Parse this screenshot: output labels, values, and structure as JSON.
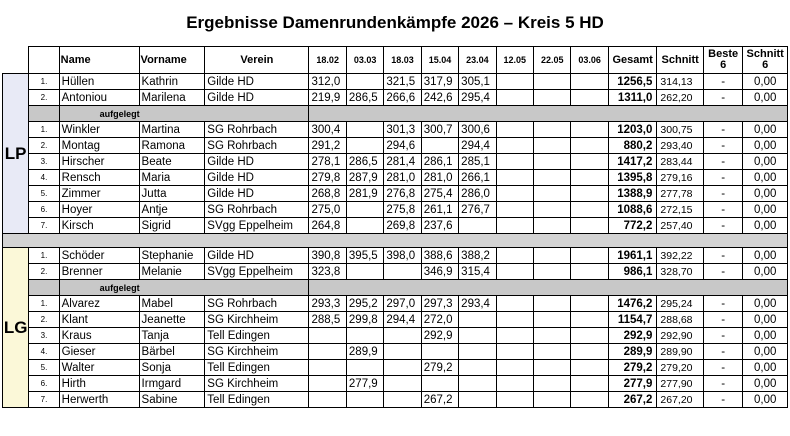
{
  "title": "Ergebnisse Damenrundenkämpfe 2026 – Kreis 5 HD",
  "headers": {
    "name": "Name",
    "vorname": "Vorname",
    "verein": "Verein",
    "dates": [
      "18.02",
      "03.03",
      "18.03",
      "15.04",
      "23.04",
      "12.05",
      "22.05",
      "03.06"
    ],
    "gesamt": "Gesamt",
    "schnitt": "Schnitt",
    "beste": "Beste 6",
    "schnitt6": "Schnitt 6"
  },
  "aufgelegt_label": "aufgelegt",
  "groups": [
    {
      "label": "LP",
      "rows_top": [
        {
          "pos": "1.",
          "name": "Hüllen",
          "vorname": "Kathrin",
          "verein": "Gilde HD",
          "scores": [
            "312,0",
            "",
            "321,5",
            "317,9",
            "305,1",
            "",
            "",
            ""
          ],
          "gesamt": "1256,5",
          "schnitt": "314,13",
          "beste": "-",
          "schnitt6": "0,00"
        },
        {
          "pos": "2.",
          "name": "Antoniou",
          "vorname": "Marilena",
          "verein": "Gilde HD",
          "scores": [
            "219,9",
            "286,5",
            "266,6",
            "242,6",
            "295,4",
            "",
            "",
            ""
          ],
          "gesamt": "1311,0",
          "schnitt": "262,20",
          "beste": "-",
          "schnitt6": "0,00"
        }
      ],
      "rows_bottom": [
        {
          "pos": "1.",
          "name": "Winkler",
          "vorname": "Martina",
          "verein": "SG Rohrbach",
          "scores": [
            "300,4",
            "",
            "301,3",
            "300,7",
            "300,6",
            "",
            "",
            ""
          ],
          "gesamt": "1203,0",
          "schnitt": "300,75",
          "beste": "-",
          "schnitt6": "0,00"
        },
        {
          "pos": "2.",
          "name": "Montag",
          "vorname": "Ramona",
          "verein": "SG Rohrbach",
          "scores": [
            "291,2",
            "",
            "294,6",
            "",
            "294,4",
            "",
            "",
            ""
          ],
          "gesamt": "880,2",
          "schnitt": "293,40",
          "beste": "-",
          "schnitt6": "0,00"
        },
        {
          "pos": "3.",
          "name": "Hirscher",
          "vorname": "Beate",
          "verein": "Gilde HD",
          "scores": [
            "278,1",
            "286,5",
            "281,4",
            "286,1",
            "285,1",
            "",
            "",
            ""
          ],
          "gesamt": "1417,2",
          "schnitt": "283,44",
          "beste": "-",
          "schnitt6": "0,00"
        },
        {
          "pos": "4.",
          "name": "Rensch",
          "vorname": "Maria",
          "verein": "Gilde HD",
          "scores": [
            "279,8",
            "287,9",
            "281,0",
            "281,0",
            "266,1",
            "",
            "",
            ""
          ],
          "gesamt": "1395,8",
          "schnitt": "279,16",
          "beste": "-",
          "schnitt6": "0,00"
        },
        {
          "pos": "5.",
          "name": "Zimmer",
          "vorname": "Jutta",
          "verein": "Gilde HD",
          "scores": [
            "268,8",
            "281,9",
            "276,8",
            "275,4",
            "286,0",
            "",
            "",
            ""
          ],
          "gesamt": "1388,9",
          "schnitt": "277,78",
          "beste": "-",
          "schnitt6": "0,00"
        },
        {
          "pos": "6.",
          "name": "Hoyer",
          "vorname": "Antje",
          "verein": "SG Rohrbach",
          "scores": [
            "275,0",
            "",
            "275,8",
            "261,1",
            "276,7",
            "",
            "",
            ""
          ],
          "gesamt": "1088,6",
          "schnitt": "272,15",
          "beste": "-",
          "schnitt6": "0,00"
        },
        {
          "pos": "7.",
          "name": "Kirsch",
          "vorname": "Sigrid",
          "verein": "SVgg Eppelheim",
          "scores": [
            "264,8",
            "",
            "269,8",
            "237,6",
            "",
            "",
            "",
            ""
          ],
          "gesamt": "772,2",
          "schnitt": "257,40",
          "beste": "-",
          "schnitt6": "0,00"
        }
      ]
    },
    {
      "label": "LG",
      "rows_top": [
        {
          "pos": "1.",
          "name": "Schöder",
          "vorname": "Stephanie",
          "verein": "Gilde HD",
          "scores": [
            "390,8",
            "395,5",
            "398,0",
            "388,6",
            "388,2",
            "",
            "",
            ""
          ],
          "gesamt": "1961,1",
          "schnitt": "392,22",
          "beste": "-",
          "schnitt6": "0,00"
        },
        {
          "pos": "2.",
          "name": "Brenner",
          "vorname": "Melanie",
          "verein": "SVgg Eppelheim",
          "scores": [
            "323,8",
            "",
            "",
            "346,9",
            "315,4",
            "",
            "",
            ""
          ],
          "gesamt": "986,1",
          "schnitt": "328,70",
          "beste": "-",
          "schnitt6": "0,00"
        }
      ],
      "rows_bottom": [
        {
          "pos": "1.",
          "name": "Alvarez",
          "vorname": "Mabel",
          "verein": "SG Rohrbach",
          "scores": [
            "293,3",
            "295,2",
            "297,0",
            "297,3",
            "293,4",
            "",
            "",
            ""
          ],
          "gesamt": "1476,2",
          "schnitt": "295,24",
          "beste": "-",
          "schnitt6": "0,00"
        },
        {
          "pos": "2.",
          "name": "Klant",
          "vorname": "Jeanette",
          "verein": "SG Kirchheim",
          "scores": [
            "288,5",
            "299,8",
            "294,4",
            "272,0",
            "",
            "",
            "",
            ""
          ],
          "gesamt": "1154,7",
          "schnitt": "288,68",
          "beste": "-",
          "schnitt6": "0,00"
        },
        {
          "pos": "3.",
          "name": "Kraus",
          "vorname": "Tanja",
          "verein": "Tell Edingen",
          "scores": [
            "",
            "",
            "",
            "292,9",
            "",
            "",
            "",
            ""
          ],
          "gesamt": "292,9",
          "schnitt": "292,90",
          "beste": "-",
          "schnitt6": "0,00"
        },
        {
          "pos": "4.",
          "name": "Gieser",
          "vorname": "Bärbel",
          "verein": "SG Kirchheim",
          "scores": [
            "",
            "289,9",
            "",
            "",
            "",
            "",
            "",
            ""
          ],
          "gesamt": "289,9",
          "schnitt": "289,90",
          "beste": "-",
          "schnitt6": "0,00"
        },
        {
          "pos": "5.",
          "name": "Walter",
          "vorname": "Sonja",
          "verein": "Tell Edingen",
          "scores": [
            "",
            "",
            "",
            "279,2",
            "",
            "",
            "",
            ""
          ],
          "gesamt": "279,2",
          "schnitt": "279,20",
          "beste": "-",
          "schnitt6": "0,00"
        },
        {
          "pos": "6.",
          "name": "Hirth",
          "vorname": "Irmgard",
          "verein": "SG Kirchheim",
          "scores": [
            "",
            "277,9",
            "",
            "",
            "",
            "",
            "",
            ""
          ],
          "gesamt": "277,9",
          "schnitt": "277,90",
          "beste": "-",
          "schnitt6": "0,00"
        },
        {
          "pos": "7.",
          "name": "Herwerth",
          "vorname": "Sabine",
          "verein": "Tell Edingen",
          "scores": [
            "",
            "",
            "",
            "267,2",
            "",
            "",
            "",
            ""
          ],
          "gesamt": "267,2",
          "schnitt": "267,20",
          "beste": "-",
          "schnitt6": "0,00"
        }
      ]
    }
  ]
}
